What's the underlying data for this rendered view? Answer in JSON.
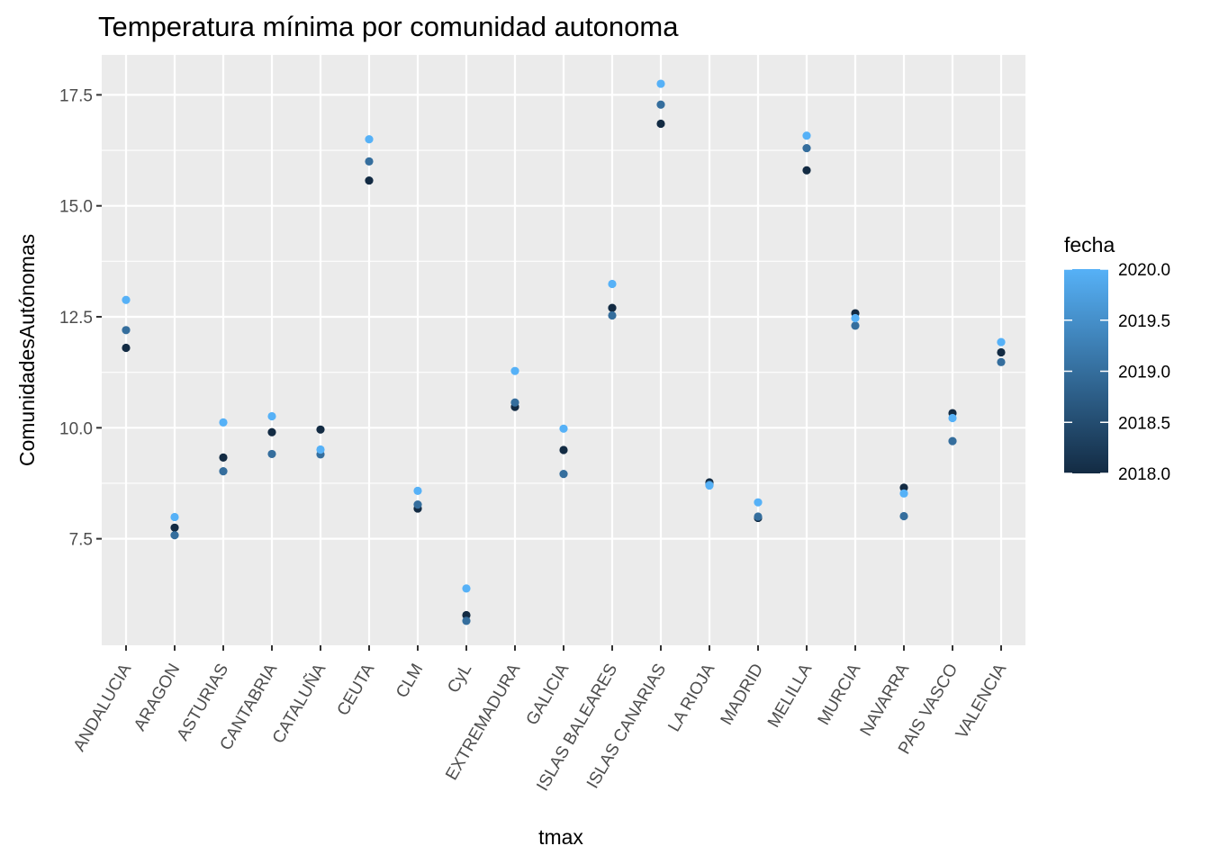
{
  "chart_data": {
    "type": "scatter",
    "title": "Temperatura mínima por comunidad autonoma",
    "xlabel": "tmax",
    "ylabel": "ComunidadesAutónomas",
    "categories": [
      "ANDALUCIA",
      "ARAGON",
      "ASTURIAS",
      "CANTABRIA",
      "CATALUÑA",
      "CEUTA",
      "CLM",
      "CyL",
      "EXTREMADURA",
      "GALICIA",
      "ISLAS BALEARES",
      "ISLAS CANARIAS",
      "LA RIOJA",
      "MADRID",
      "MELILLA",
      "MURCIA",
      "NAVARRA",
      "PAIS VASCO",
      "VALENCIA"
    ],
    "y_ticks": [
      7.5,
      10.0,
      12.5,
      15.0,
      17.5
    ],
    "y_tick_labels": [
      "7.5",
      "10.0",
      "12.5",
      "15.0",
      "17.5"
    ],
    "ylim": [
      5.1,
      18.4
    ],
    "grid": true,
    "legend": {
      "title": "fecha",
      "position": "right",
      "type": "colorbar",
      "range": [
        2018.0,
        2020.0
      ],
      "ticks": [
        2018.0,
        2018.5,
        2019.0,
        2019.5,
        2020.0
      ],
      "tick_labels": [
        "2018.0",
        "2018.5",
        "2019.0",
        "2019.5",
        "2020.0"
      ],
      "color_low": "#132B43",
      "color_high": "#56B1F7"
    },
    "series": [
      {
        "fecha": 2018,
        "values": [
          11.8,
          7.75,
          9.33,
          9.9,
          9.96,
          15.57,
          8.18,
          5.78,
          10.47,
          9.5,
          12.7,
          16.85,
          8.77,
          7.97,
          15.8,
          12.58,
          8.65,
          10.33,
          11.7
        ]
      },
      {
        "fecha": 2019,
        "values": [
          12.2,
          7.58,
          9.02,
          9.41,
          9.4,
          16.0,
          8.27,
          5.65,
          10.57,
          8.96,
          12.53,
          17.28,
          8.72,
          8.0,
          16.3,
          12.3,
          8.01,
          9.7,
          11.48
        ]
      },
      {
        "fecha": 2020,
        "values": [
          12.88,
          7.99,
          10.12,
          10.26,
          9.51,
          16.5,
          8.58,
          6.38,
          11.28,
          9.98,
          13.24,
          17.75,
          8.7,
          8.32,
          16.58,
          12.47,
          8.52,
          10.22,
          11.93
        ]
      }
    ]
  }
}
